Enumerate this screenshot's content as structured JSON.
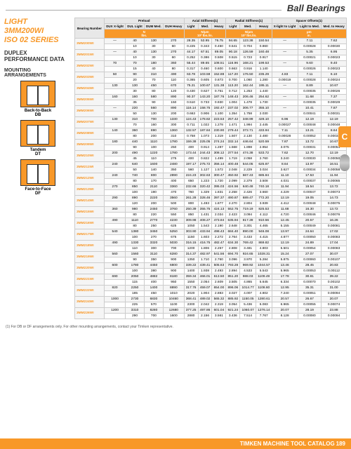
{
  "header": {
    "title": "Ball Bearings"
  },
  "left": {
    "title_l1": "LIGHT",
    "title_l2": "3MM200WI",
    "title_l3": "ISO 02 SERIES",
    "subtitle_l1": "DUPLEX",
    "subtitle_l2": "PERFORMANCE DATA",
    "mounting": "MOUNTING ARRANGEMENTS",
    "d1_label": "Back-to-Back",
    "d1_sub": "DB",
    "d2_label": "Tandem",
    "d2_sub": "DT",
    "d3_label": "Face-to-Face",
    "d3_sub": "DF"
  },
  "table": {
    "bearing_col": "Bearing Number",
    "groups": [
      "Preload",
      "Axial Stiffness(1)",
      "Radial Stiffness(1)",
      "Spacer Offsets(1)"
    ],
    "cols": [
      "DUX X-light",
      "DUL Light",
      "DUM Med.",
      "DUH Heavy",
      "Light",
      "Med.",
      "Heavy",
      "Light",
      "Med.",
      "Heavy",
      "X-light to Light",
      "Light to Med.",
      "Med. to Heavy"
    ],
    "units": [
      "N",
      "N/μm",
      "N/μm",
      "μm"
    ],
    "units2": [
      "lbs.",
      "10³ lbs./in.",
      "10³ lbs./in.",
      "in."
    ],
    "rows": [
      {
        "b": "3MM200WI",
        "v": [
          "—",
          "40",
          "130",
          "270",
          "28.35",
          "53.95",
          "76.75",
          "94.65",
          "123.38",
          "150.54",
          "—",
          "7.11",
          "7.62",
          "",
          "10",
          "30",
          "60",
          "0.225",
          "0.343",
          "0.450",
          "0.541",
          "0.704",
          "0.860",
          "",
          "0.00028",
          "0.00030"
        ]
      },
      {
        "b": "3MM201WI",
        "v": [
          "—",
          "40",
          "130",
          "270",
          "44.17",
          "67.51",
          "89.05",
          "90.18",
          "126.59",
          "160.48",
          "—",
          "5.35",
          "6.95",
          "",
          "10",
          "30",
          "60",
          "0.252",
          "0.386",
          "0.508",
          "0.515",
          "0.723",
          "0.917",
          "",
          "0.00021",
          "0.00023"
        ]
      },
      {
        "b": "3MM202WI",
        "v": [
          "70",
          "70",
          "180",
          "360",
          "55.44",
          "89.65",
          "108.51",
          "116.96",
          "168.21",
          "199.53",
          "—",
          "9.60",
          "9.40",
          "",
          "15",
          "40",
          "80",
          "0.317",
          "0.460",
          "0.600",
          "0.663",
          "0.916",
          "1.140",
          "",
          "0.00026",
          "0.00023"
        ]
      },
      {
        "b": "3MM203WI",
        "v": [
          "50",
          "90",
          "310",
          "490",
          "63.78",
          "103.59",
          "152.88",
          "117.20",
          "176.50",
          "235.29",
          "4.83",
          "7.11",
          "6.10",
          "",
          "20",
          "70",
          "110",
          "0.365",
          "0.605",
          "0.873",
          "0.700",
          "1.060",
          "1.280",
          "0.00019",
          "0.00028",
          "0.00024"
        ]
      },
      {
        "b": "3MM204WI",
        "v": [
          "130",
          "130",
          "450",
          "670",
          "75.21",
          "100.67",
          "131.38",
          "113.20",
          "162.44",
          "195.11",
          "—",
          "8.89",
          "10.67",
          "",
          "30",
          "80",
          "120",
          "0.430",
          "0.627",
          "0.751",
          "0.712",
          "1.253",
          "1.440",
          "",
          "0.00035",
          "0.00026"
        ]
      },
      {
        "b": "3MM205WI",
        "v": [
          "160",
          "160",
          "580",
          "890",
          "90.37",
          "143.20",
          "187.76",
          "148.43",
          "206.46",
          "254.62",
          "—",
          "11.68",
          "7.37",
          "",
          "35",
          "90",
          "150",
          "0.510",
          "0.733",
          "0.930",
          "1.004",
          "1.478",
          "1.730",
          "",
          "0.00035",
          "0.00029"
        ]
      },
      {
        "b": "3MM206WI",
        "v": [
          "—",
          "220",
          "560",
          "890",
          "116.14",
          "158.75",
          "192.47",
          "237.02",
          "306.77",
          "355.10",
          "—",
          "10.41",
          "7.87",
          "",
          "50",
          "130",
          "200",
          "0.663",
          "0.906",
          "1.100",
          "1.354",
          "1.758",
          "2.030",
          "",
          "0.00041",
          "0.00031"
        ]
      },
      {
        "b": "3MM207WI",
        "v": [
          "130",
          "310",
          "700",
          "1330",
          "124.43",
          "178.82",
          "223.53",
          "257.42",
          "348.99",
          "428.10",
          "6.96",
          "12.19",
          "12.19",
          "",
          "70",
          "160",
          "300",
          "0.711",
          "1.022",
          "1.278",
          "1.471",
          "1.994",
          "2.445",
          "0.00027",
          "0.00048",
          "0.00048"
        ]
      },
      {
        "b": "3MM208WI",
        "v": [
          "140",
          "360",
          "890",
          "1360",
          "132.57",
          "187.84",
          "230.90",
          "279.44",
          "372.71",
          "433.94",
          "7.11",
          "13.21",
          "8.64",
          "",
          "80",
          "200",
          "310",
          "0.758",
          "1.073",
          "1.319",
          "1.507",
          "2.130",
          "2.480",
          "0.00028",
          "0.00052",
          "0.00034"
        ]
      },
      {
        "b": "3MM209WI",
        "v": [
          "180",
          "440",
          "1110",
          "1780",
          "159.38",
          "225.05",
          "274.24",
          "332.14",
          "446.64",
          "520.59",
          "7.87",
          "13.72",
          "10.67",
          "",
          "90",
          "100",
          "250",
          "400",
          "0.914",
          "1.287",
          "1.568",
          "1.898",
          "2.954",
          "3.075",
          "0.00031",
          "0.00054",
          "0.00042"
        ]
      },
      {
        "b": "3MM210WI",
        "v": [
          "200",
          "490",
          "1220",
          "1780",
          "173.44",
          "244.43",
          "308.12",
          "377.54",
          "474.38",
          "533.72",
          "7.62",
          "12.70",
          "12.19",
          "",
          "45",
          "110",
          "275",
          "400",
          "0.822",
          "1.499",
          "1.719",
          "2.058",
          "2.760",
          "3.240",
          "0.00030",
          "0.00050",
          "0.00048"
        ]
      },
      {
        "b": "3MM211WI",
        "v": [
          "240",
          "640",
          "1600",
          "2480",
          "197.17",
          "275.72",
          "356.14",
          "400.48",
          "544.05",
          "625.87",
          "8.64",
          "13.97",
          "16.51",
          "",
          "50",
          "140",
          "350",
          "560",
          "1.127",
          "1.572",
          "2.048",
          "2.229",
          "3.024",
          "3.627",
          "0.00034",
          "0.00058",
          "0.00057"
        ]
      },
      {
        "b": "3MM212WI",
        "v": [
          "240",
          "740",
          "800",
          "2890",
          "224.23",
          "302.63",
          "300.47",
          "450.92",
          "667.43",
          "685.84",
          "11.10",
          "17.53",
          "11.94",
          "",
          "80",
          "170",
          "400",
          "650",
          "1.223",
          "1.720",
          "2.099",
          "2.379",
          "3.508",
          "4.031",
          "0.00037",
          "0.00065",
          "0.00070"
        ]
      },
      {
        "b": "3MM213WI",
        "v": [
          "270",
          "850",
          "2110",
          "3360",
          "232.66",
          "320.42",
          "395.03",
          "424.56",
          "640.48",
          "740.18",
          "11.94",
          "18.54",
          "13.72",
          "",
          "100",
          "190",
          "470",
          "760",
          "1.329",
          "1.831",
          "2.258",
          "2.426",
          "3.660",
          "4.229",
          "0.00047",
          "0.00073",
          "0.00054"
        ]
      },
      {
        "b": "3MM214WI",
        "v": [
          "290",
          "890",
          "2220",
          "3560",
          "261.28",
          "328.46",
          "397.37",
          "490.87",
          "689.47",
          "772.20",
          "12.19",
          "19.05",
          "14.73",
          "",
          "120",
          "200",
          "500",
          "800",
          "1.493",
          "1.877",
          "2.270",
          "2.804",
          "3.939",
          "4.412",
          "0.00048",
          "0.00075",
          "0.00058"
        ]
      },
      {
        "b": "3MM215WI",
        "v": [
          "360",
          "980",
          "2450",
          "3760",
          "250.39",
          "355.75",
          "424.13",
          "552.75",
          "719.19",
          "825.53",
          "11.68",
          "16.30",
          "13.72",
          "",
          "80",
          "220",
          "550",
          "850",
          "1.431",
          "2.034",
          "2.423",
          "3.094",
          "4.112",
          "4.720",
          "0.00046",
          "0.00076",
          "0.00054"
        ]
      },
      {
        "b": "3MM216WI",
        "v": [
          "490",
          "1110",
          "2770",
          "4230",
          "309.98",
          "408.27",
          "473.84",
          "635.94",
          "817.39",
          "910.56",
          "12.45",
          "20.57",
          "16.26",
          "",
          "80",
          "250",
          "625",
          "1050",
          "1.543",
          "2.190",
          "2.648",
          "3.301",
          "4.465",
          "5.155",
          "0.00049",
          "0.00081",
          "0.00064"
        ]
      },
      {
        "b": "3MM217WI",
        "v": [
          "540",
          "1380",
          "3450",
          "5250",
          "303.90",
          "433.94",
          "498.43",
          "684.40",
          "890.00",
          "946.08",
          "13.97",
          "24.64",
          "17.02",
          "",
          "100",
          "270",
          "675",
          "1150",
          "1.603",
          "2.272",
          "2.764",
          "3.433",
          "4.415",
          "4.877",
          "0.00050",
          "0.00083",
          "0.00067"
        ]
      },
      {
        "b": "3MM218WI",
        "v": [
          "490",
          "1330",
          "3320",
          "5030",
          "316.15",
          "416.75",
          "482.47",
          "634.30",
          "769.42",
          "869.82",
          "12.19",
          "24.89",
          "17.04",
          "",
          "110",
          "300",
          "700",
          "1200",
          "1.806",
          "2.257",
          "2.808",
          "3.481",
          "4.803",
          "5.501",
          "0.00054",
          "0.00083",
          "0.00087"
        ]
      },
      {
        "b": "3MM219WI",
        "v": [
          "560",
          "1560",
          "3110",
          "6280",
          "314.37",
          "482.97",
          "541.56",
          "694.70",
          "924.65",
          "1028.31",
          "15.24",
          "27.07",
          "30.07",
          "",
          "90",
          "350",
          "900",
          "1350",
          "1.710",
          "2.760",
          "3.096",
          "3.970",
          "5.284",
          "5.875",
          "0.00060",
          "0.00107",
          "0.00075"
        ]
      },
      {
        "b": "3MM220WI",
        "v": [
          "600",
          "1780",
          "4450",
          "6800",
          "339.22",
          "439.41",
          "505.63",
          "793.28",
          "969.92",
          "1044.57",
          "13.46",
          "28.45",
          "20.83",
          "",
          "100",
          "380",
          "900",
          "1400",
          "1.938",
          "2.493",
          "2.894",
          "4.533",
          "5.543",
          "5.965",
          "0.00053",
          "0.00112",
          "0.00082"
        ]
      },
      {
        "b": "3MM221WI",
        "v": [
          "690",
          "2050",
          "4882",
          "8180",
          "359.34",
          "466.01",
          "613.50",
          "851.20",
          "988.03",
          "1109.49",
          "17.78",
          "30.81",
          "39.22",
          "",
          "115",
          "400",
          "950",
          "1550",
          "2.054",
          "2.609",
          "3.505",
          "4.865",
          "5.645",
          "6.334",
          "0.00070",
          "0.00102",
          "0.00079"
        ]
      },
      {
        "b": "3MM222WI",
        "v": [
          "820",
          "2250",
          "1400",
          "8890",
          "317.76",
          "459.07",
          "654.00",
          "896.06",
          "1014.77",
          "1108.60",
          "12.95",
          "35.31",
          "31.00",
          "",
          "185",
          "450",
          "1010",
          "2020",
          "1.904",
          "2.883",
          "3.027",
          "4.007",
          "4.802",
          "7.240",
          "0.00051",
          "0.00094",
          "0.00083"
        ]
      },
      {
        "b": "3MM224WI",
        "v": [
          "1000",
          "2730",
          "6830",
          "10460",
          "368.41",
          "489.02",
          "565.32",
          "885.92",
          "1150.05",
          "1280.61",
          "20.57",
          "26.67",
          "20.07",
          "",
          "225",
          "570",
          "1100",
          "2300",
          "2.042",
          "2.319",
          "3.054",
          "5.436",
          "6.083",
          "6.965",
          "0.00055",
          "0.00074",
          "0.00078"
        ]
      },
      {
        "b": "3MM226WI",
        "v": [
          "1200",
          "3310",
          "8280",
          "12680",
          "377.25",
          "497.86",
          "601.04",
          "921.24",
          "1060.07",
          "1276.14",
          "20.07",
          "28.19",
          "23.88",
          "",
          "290",
          "700",
          "1600",
          "2880",
          "2.156",
          "3.561",
          "3.436",
          "7.514",
          "7.767",
          "8.128",
          "0.00080",
          "0.00094",
          "0.00110"
        ]
      }
    ]
  },
  "footnote": "(1) For DB or DF arrangements only. For other mounting arrangements, contact your Timken representative.",
  "footer": {
    "text": "TIMKEN MACHINE TOOL CATALOG",
    "page": "189"
  },
  "tab": "C"
}
